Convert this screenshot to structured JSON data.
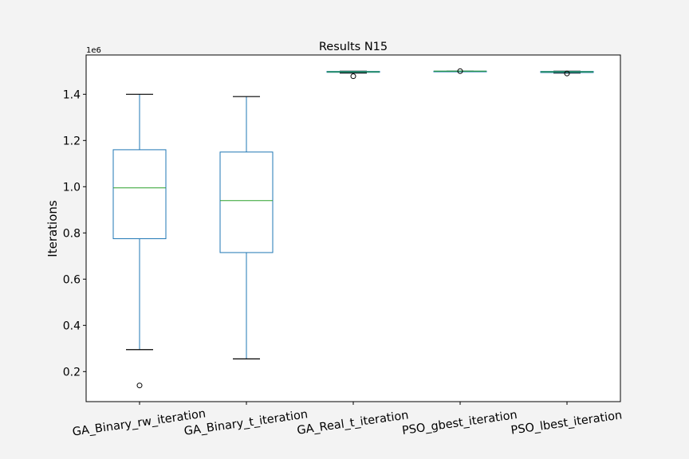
{
  "chart_data": {
    "type": "box",
    "title": "Results N15",
    "ylabel": "Iterations",
    "xlabel": "",
    "offset_text": "1e6",
    "ylim": [
      0.07,
      1.57
    ],
    "yticks": [
      0.2,
      0.4,
      0.6,
      0.8,
      1.0,
      1.2,
      1.4
    ],
    "ytick_labels": [
      "0.2",
      "0.4",
      "0.6",
      "0.8",
      "1.0",
      "1.2",
      "1.4"
    ],
    "grid": false,
    "colors": {
      "box": "#1f77b4",
      "median": "#2ca02c",
      "whisker_cap": "#000000",
      "flier": "#000000",
      "background": "#f3f3f3",
      "axes": "#ffffff"
    },
    "categories": [
      "GA_Binary_rw_iteration",
      "GA_Binary_t_iteration",
      "GA_Real_t_iteration",
      "PSO_gbest_iteration",
      "PSO_lbest_iteration"
    ],
    "boxes": [
      {
        "whislo": 0.295,
        "q1": 0.775,
        "median": 0.995,
        "q3": 1.16,
        "whishi": 1.4,
        "fliers": [
          0.14
        ]
      },
      {
        "whislo": 0.255,
        "q1": 0.715,
        "median": 0.94,
        "q3": 1.15,
        "whishi": 1.39,
        "fliers": []
      },
      {
        "whislo": 1.492,
        "q1": 1.495,
        "median": 1.497,
        "q3": 1.499,
        "whishi": 1.5,
        "fliers": [
          1.478
        ]
      },
      {
        "whislo": 1.499,
        "q1": 1.4995,
        "median": 1.5,
        "q3": 1.5,
        "whishi": 1.5,
        "fliers": [
          1.5
        ]
      },
      {
        "whislo": 1.492,
        "q1": 1.494,
        "median": 1.497,
        "q3": 1.499,
        "whishi": 1.5,
        "fliers": [
          1.49
        ]
      }
    ]
  }
}
